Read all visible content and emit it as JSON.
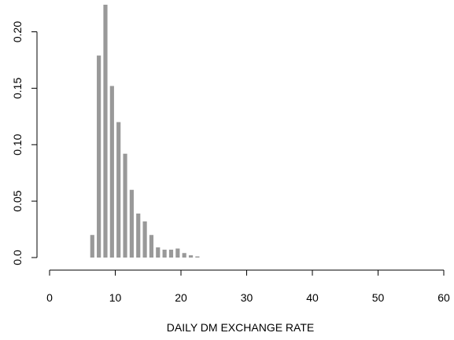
{
  "chart_data": {
    "type": "bar",
    "title": "",
    "xlabel": "DAILY DM EXCHANGE RATE",
    "ylabel": "",
    "xlim": [
      0,
      60
    ],
    "ylim": [
      0,
      0.22
    ],
    "xticks": [
      0,
      10,
      20,
      30,
      40,
      50,
      60
    ],
    "yticks": [
      0.0,
      0.05,
      0.1,
      0.15,
      0.2
    ],
    "ytick_labels": [
      "0.0",
      "0.05",
      "0.10",
      "0.15",
      "0.20"
    ],
    "grid": false,
    "bar_color": "#999999",
    "x": [
      6.5,
      7.5,
      8.5,
      9.5,
      10.5,
      11.5,
      12.5,
      13.5,
      14.5,
      15.5,
      16.5,
      17.5,
      18.5,
      19.5,
      20.5,
      21.5,
      22.5
    ],
    "values": [
      0.02,
      0.179,
      0.224,
      0.152,
      0.12,
      0.092,
      0.06,
      0.039,
      0.032,
      0.02,
      0.009,
      0.007,
      0.007,
      0.008,
      0.004,
      0.002,
      0.001
    ]
  }
}
